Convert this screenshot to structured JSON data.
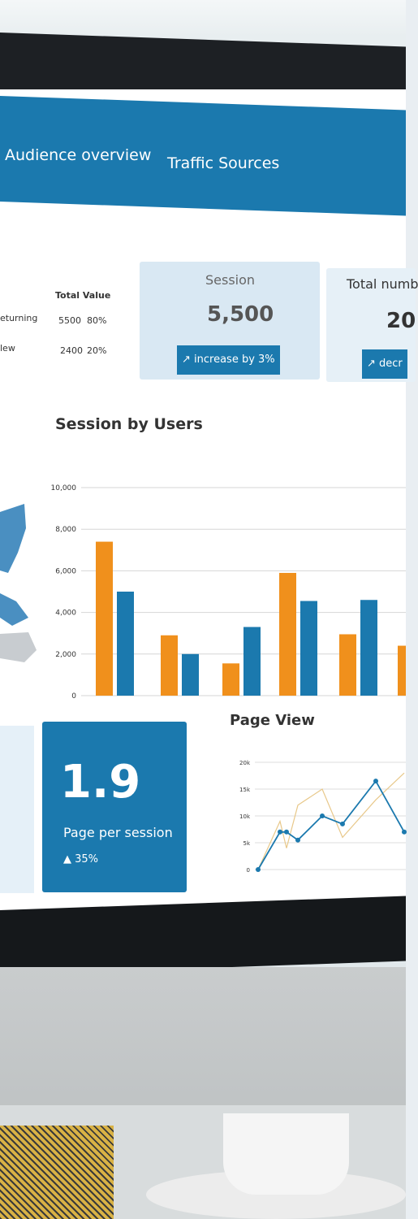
{
  "nav": {
    "tabs": [
      "Audience overview",
      "Traffic Sources"
    ]
  },
  "visitors_table": {
    "header": "Total Value",
    "rows": [
      {
        "label": "eturning",
        "value": "5500",
        "pct": "80%"
      },
      {
        "label": "lew",
        "value": "2400",
        "pct": "20%"
      }
    ]
  },
  "session_card": {
    "title": "Session",
    "value": "5,500",
    "trend": "increase by 3%"
  },
  "total_card": {
    "title": "Total numb",
    "value": "20",
    "trend": "decr"
  },
  "chart_data": {
    "type": "bar",
    "title": "Session by Users",
    "yticks": [
      "10,000",
      "8,000",
      "6,000",
      "4,000",
      "2,000",
      "0"
    ],
    "ylim": [
      0,
      10000
    ],
    "grid": true,
    "series": [
      {
        "color": "#f0901c",
        "values": [
          7400,
          2900,
          1550,
          5900,
          2950,
          2400
        ]
      },
      {
        "color": "#1b79ae",
        "values": [
          5000,
          2000,
          3300,
          4550,
          4600,
          null
        ]
      }
    ]
  },
  "pages_per_session": {
    "value": "1.9",
    "label": "Page per session",
    "change": "▲ 35%"
  },
  "page_view_chart": {
    "title": "Page View",
    "yticks": [
      "20k",
      "15k",
      "10k",
      "5k",
      "0"
    ],
    "ylim": [
      0,
      20000
    ],
    "points": [
      0,
      7000,
      7000,
      5500,
      10000,
      8500,
      16500,
      7000
    ],
    "accent": "#e8c88a"
  },
  "colors": {
    "primary": "#1b79ae",
    "orange": "#f0901c"
  }
}
